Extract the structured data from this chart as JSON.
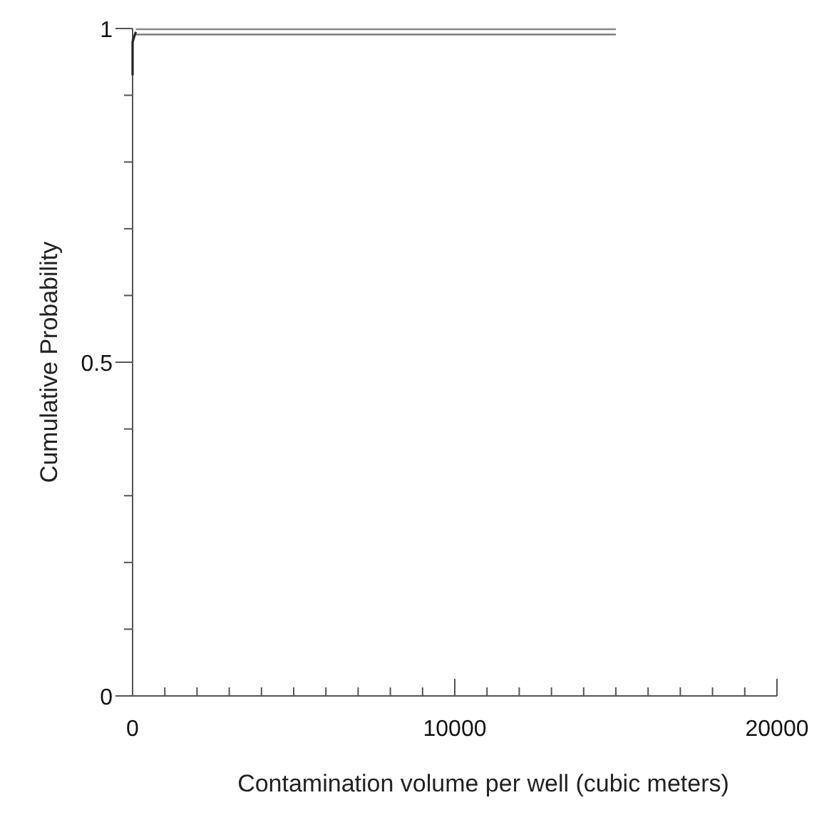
{
  "chart_data": {
    "type": "line",
    "xlabel": "Contamination volume per well (cubic meters)",
    "ylabel": "Cumulative Probability",
    "xlim": [
      0,
      20000
    ],
    "ylim": [
      0,
      1
    ],
    "xticks": [
      0,
      {
        "value": 1000,
        "label": null
      },
      {
        "value": 2000,
        "label": null
      },
      {
        "value": 3000,
        "label": null
      },
      {
        "value": 4000,
        "label": null
      },
      {
        "value": 5000,
        "label": null
      },
      {
        "value": 6000,
        "label": null
      },
      {
        "value": 7000,
        "label": null
      },
      {
        "value": 8000,
        "label": null
      },
      {
        "value": 9000,
        "label": null
      },
      10000,
      {
        "value": 11000,
        "label": null
      },
      {
        "value": 12000,
        "label": null
      },
      {
        "value": 13000,
        "label": null
      },
      {
        "value": 14000,
        "label": null
      },
      {
        "value": 15000,
        "label": null
      },
      {
        "value": 16000,
        "label": null
      },
      {
        "value": 17000,
        "label": null
      },
      {
        "value": 18000,
        "label": null
      },
      {
        "value": 19000,
        "label": null
      },
      20000
    ],
    "yticks": [
      0,
      {
        "value": 0.1,
        "label": null
      },
      {
        "value": 0.2,
        "label": null
      },
      {
        "value": 0.3,
        "label": null
      },
      {
        "value": 0.4,
        "label": null
      },
      {
        "value": 0.5,
        "label": "0.5"
      },
      {
        "value": 0.6,
        "label": null
      },
      {
        "value": 0.7,
        "label": null
      },
      {
        "value": 0.8,
        "label": null
      },
      {
        "value": 0.9,
        "label": null
      },
      1
    ],
    "grid": false,
    "marker": "none",
    "line_style": "solid",
    "series": [
      {
        "color": "#888888",
        "x": [
          100,
          15000
        ],
        "values": [
          0.995,
          0.995
        ]
      },
      {
        "color": "#222222",
        "x": [
          0,
          0,
          100
        ],
        "values": [
          0.93,
          0.98,
          0.995
        ]
      }
    ]
  }
}
